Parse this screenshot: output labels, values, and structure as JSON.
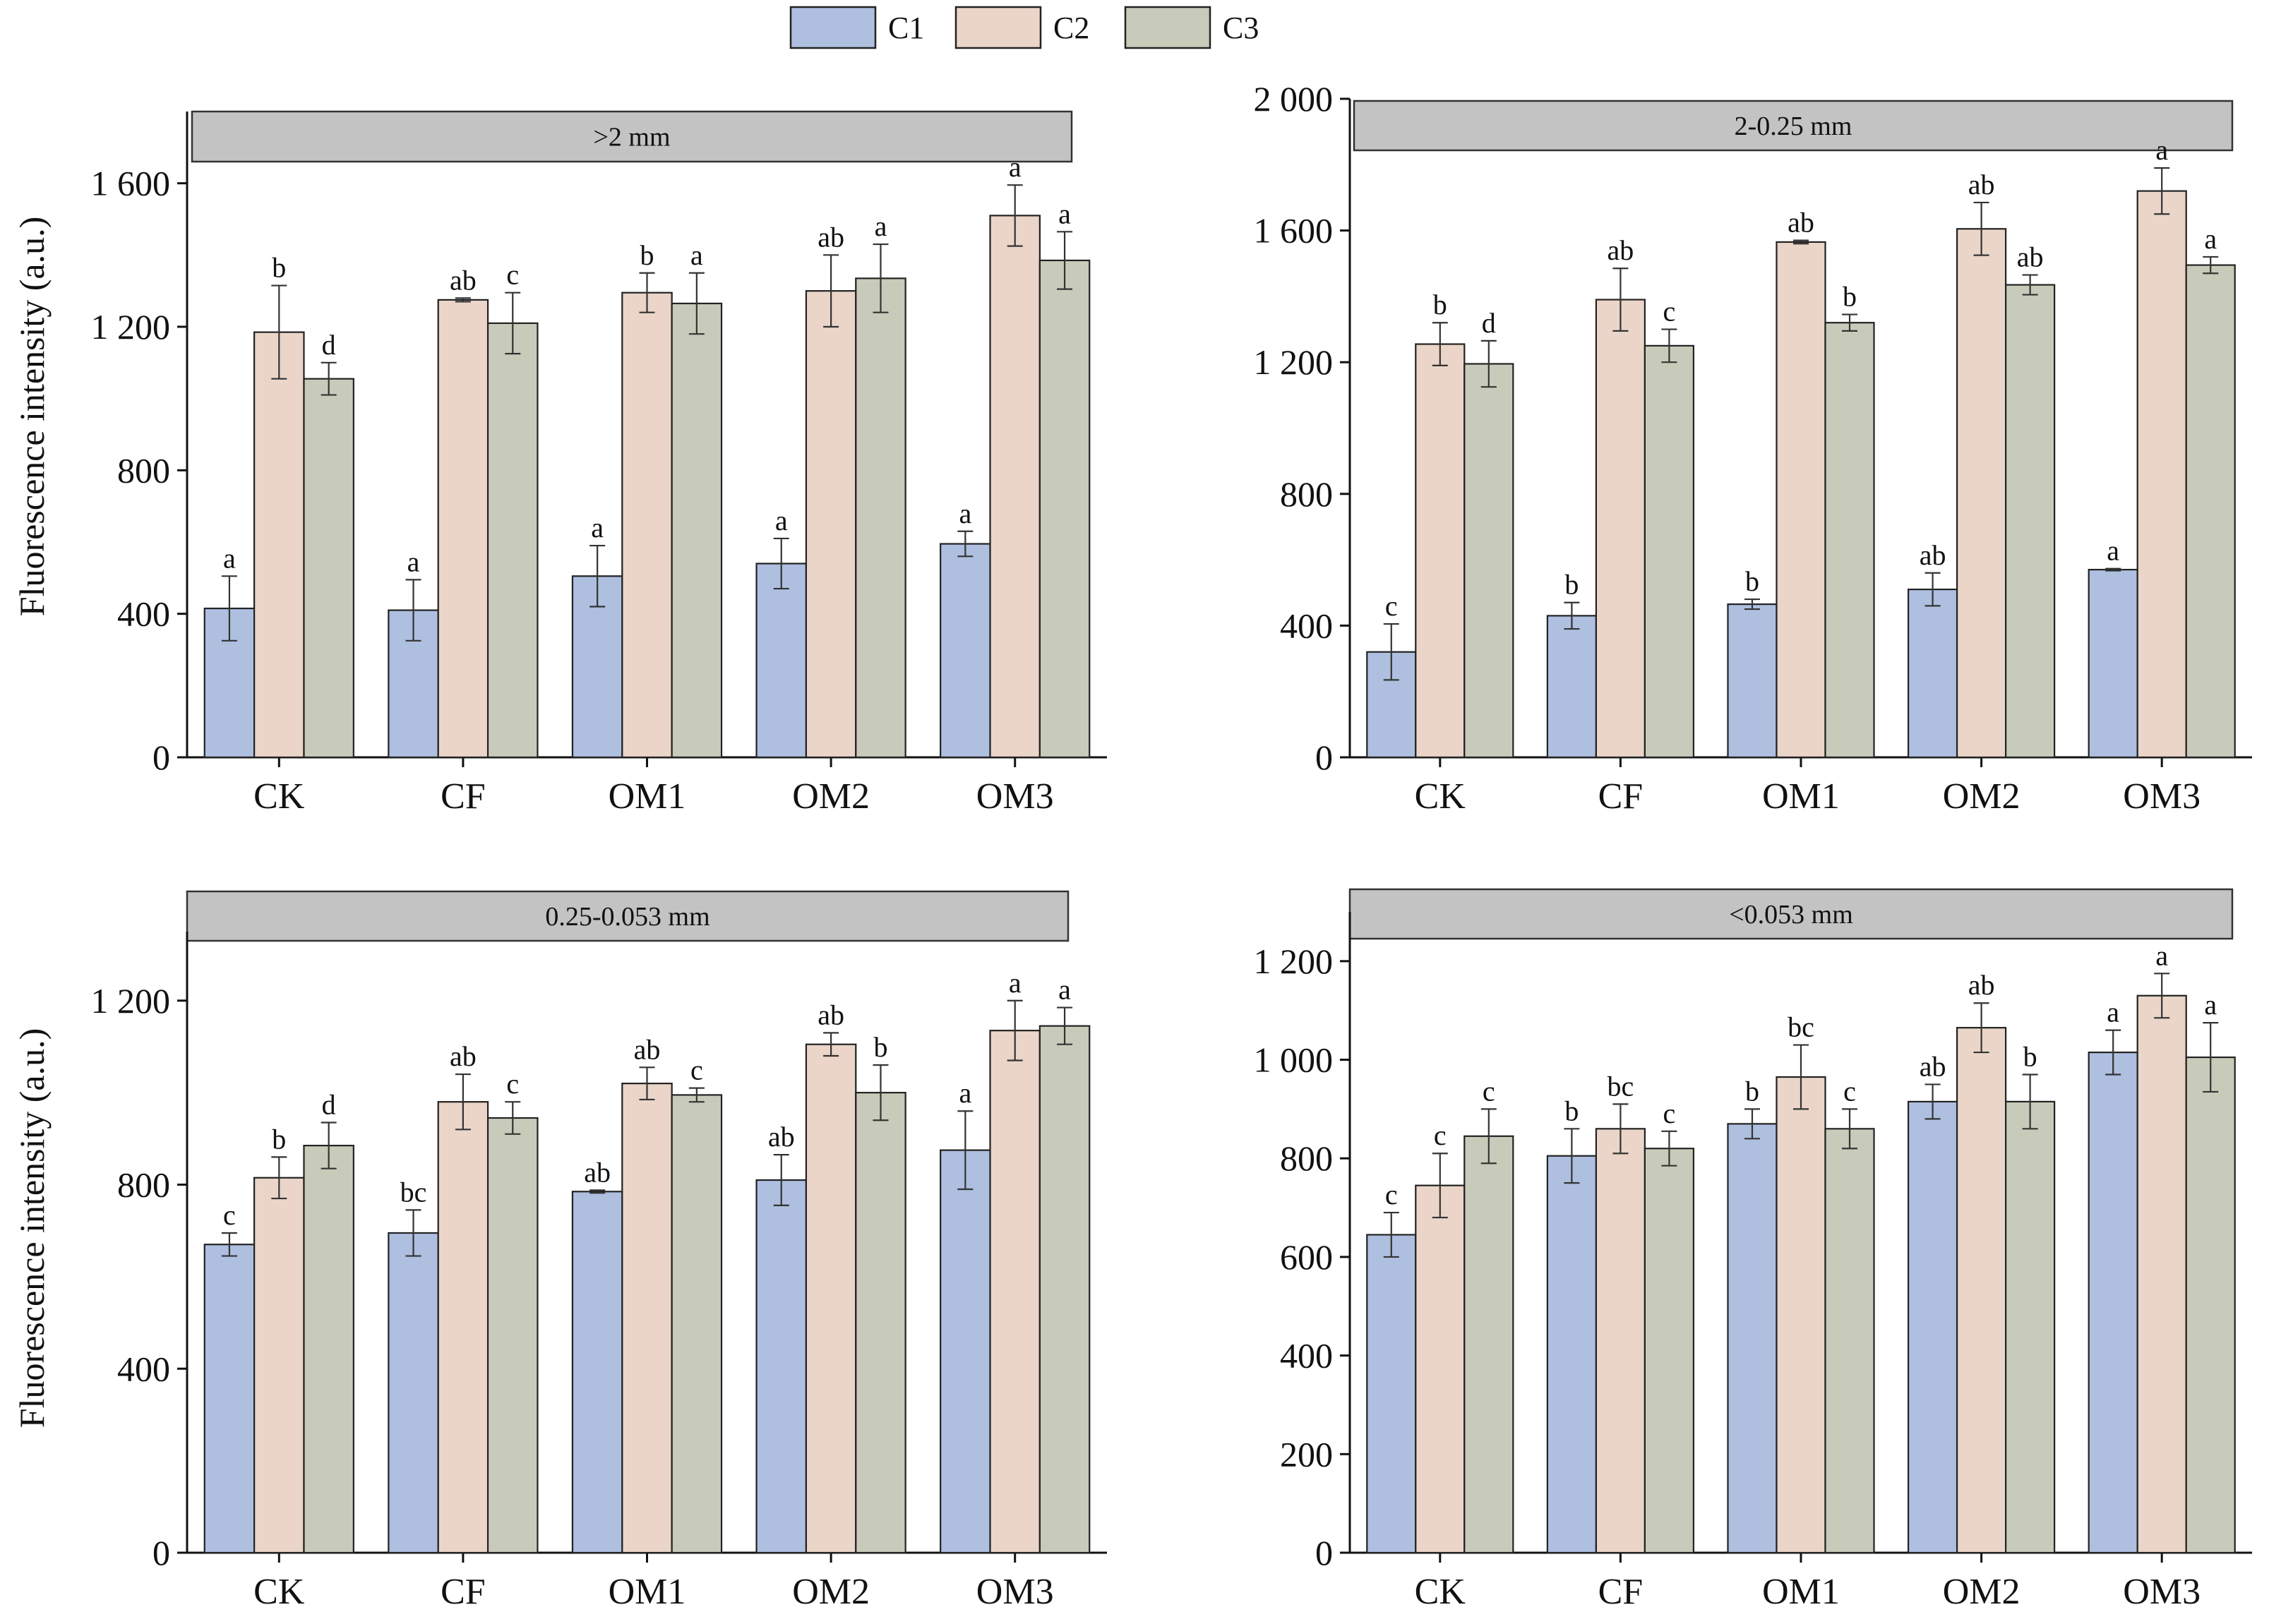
{
  "legend": {
    "position": "top-center",
    "entries": [
      {
        "label": "C1",
        "color": "#aebfe0"
      },
      {
        "label": "C2",
        "color": "#ead5c8"
      },
      {
        "label": "C3",
        "color": "#c8cbb9"
      }
    ]
  },
  "chart_data": [
    {
      "type": "bar",
      "title": ">2 mm",
      "ylabel": "Fluorescence intensity (a.u.)",
      "ylim": [
        0,
        1800
      ],
      "yticks": [
        0,
        400,
        800,
        1200,
        1600
      ],
      "ytick_labels": [
        "0",
        "400",
        "800",
        "1 200",
        "1 600"
      ],
      "categories": [
        "CK",
        "CF",
        "OM1",
        "OM2",
        "OM3"
      ],
      "series": [
        {
          "name": "C1",
          "values": [
            415,
            410,
            505,
            540,
            595
          ],
          "errors": [
            90,
            85,
            85,
            70,
            35
          ],
          "letters": [
            "a",
            "a",
            "a",
            "a",
            "a"
          ]
        },
        {
          "name": "C2",
          "values": [
            1185,
            1275,
            1295,
            1300,
            1510
          ],
          "errors": [
            130,
            5,
            55,
            100,
            85
          ],
          "letters": [
            "b",
            "ab",
            "b",
            "ab",
            "a"
          ]
        },
        {
          "name": "C3",
          "values": [
            1055,
            1210,
            1265,
            1335,
            1385
          ],
          "errors": [
            45,
            85,
            85,
            95,
            80
          ],
          "letters": [
            "d",
            "c",
            "a",
            "a",
            "a"
          ]
        }
      ]
    },
    {
      "type": "bar",
      "title": "2-0.25 mm",
      "ylabel": "",
      "ylim": [
        0,
        2000
      ],
      "yticks": [
        0,
        400,
        800,
        1200,
        1600,
        2000
      ],
      "ytick_labels": [
        "0",
        "400",
        "800",
        "1 200",
        "1 600",
        "2 000"
      ],
      "categories": [
        "CK",
        "CF",
        "OM1",
        "OM2",
        "OM3"
      ],
      "series": [
        {
          "name": "C1",
          "values": [
            320,
            430,
            465,
            510,
            570
          ],
          "errors": [
            85,
            40,
            15,
            50,
            3
          ],
          "letters": [
            "c",
            "b",
            "b",
            "ab",
            "a"
          ]
        },
        {
          "name": "C2",
          "values": [
            1255,
            1390,
            1565,
            1605,
            1720
          ],
          "errors": [
            65,
            95,
            5,
            80,
            70
          ],
          "letters": [
            "b",
            "ab",
            "ab",
            "ab",
            "a"
          ]
        },
        {
          "name": "C3",
          "values": [
            1195,
            1250,
            1320,
            1435,
            1495
          ],
          "errors": [
            70,
            50,
            25,
            30,
            25
          ],
          "letters": [
            "d",
            "c",
            "b",
            "ab",
            "a"
          ]
        }
      ]
    },
    {
      "type": "bar",
      "title": "0.25-0.053 mm",
      "ylabel": "Fluorescence intensity (a.u.)",
      "ylim": [
        0,
        1350
      ],
      "yticks": [
        0,
        400,
        800,
        1200
      ],
      "ytick_labels": [
        "0",
        "400",
        "800",
        "1 200"
      ],
      "categories": [
        "CK",
        "CF",
        "OM1",
        "OM2",
        "OM3"
      ],
      "series": [
        {
          "name": "C1",
          "values": [
            670,
            695,
            785,
            810,
            875
          ],
          "errors": [
            25,
            50,
            3,
            55,
            85
          ],
          "letters": [
            "c",
            "bc",
            "ab",
            "ab",
            "a"
          ]
        },
        {
          "name": "C2",
          "values": [
            815,
            980,
            1020,
            1105,
            1135
          ],
          "errors": [
            45,
            60,
            35,
            25,
            65
          ],
          "letters": [
            "b",
            "ab",
            "ab",
            "ab",
            "a"
          ]
        },
        {
          "name": "C3",
          "values": [
            885,
            945,
            995,
            1000,
            1145
          ],
          "errors": [
            50,
            35,
            15,
            60,
            40
          ],
          "letters": [
            "d",
            "c",
            "c",
            "b",
            "a"
          ]
        }
      ]
    },
    {
      "type": "bar",
      "title": "<0.053 mm",
      "ylabel": "",
      "ylim": [
        0,
        1300
      ],
      "yticks": [
        0,
        200,
        400,
        600,
        800,
        1000,
        1200
      ],
      "ytick_labels": [
        "0",
        "200",
        "400",
        "600",
        "800",
        "1 000",
        "1 200"
      ],
      "categories": [
        "CK",
        "CF",
        "OM1",
        "OM2",
        "OM3"
      ],
      "series": [
        {
          "name": "C1",
          "values": [
            645,
            805,
            870,
            915,
            1015
          ],
          "errors": [
            45,
            55,
            30,
            35,
            45
          ],
          "letters": [
            "c",
            "b",
            "b",
            "ab",
            "a"
          ]
        },
        {
          "name": "C2",
          "values": [
            745,
            860,
            965,
            1065,
            1130
          ],
          "errors": [
            65,
            50,
            65,
            50,
            45
          ],
          "letters": [
            "c",
            "bc",
            "bc",
            "ab",
            "a"
          ]
        },
        {
          "name": "C3",
          "values": [
            845,
            820,
            860,
            915,
            1005
          ],
          "errors": [
            55,
            35,
            40,
            55,
            70
          ],
          "letters": [
            "c",
            "c",
            "c",
            "b",
            "a"
          ]
        }
      ]
    }
  ]
}
